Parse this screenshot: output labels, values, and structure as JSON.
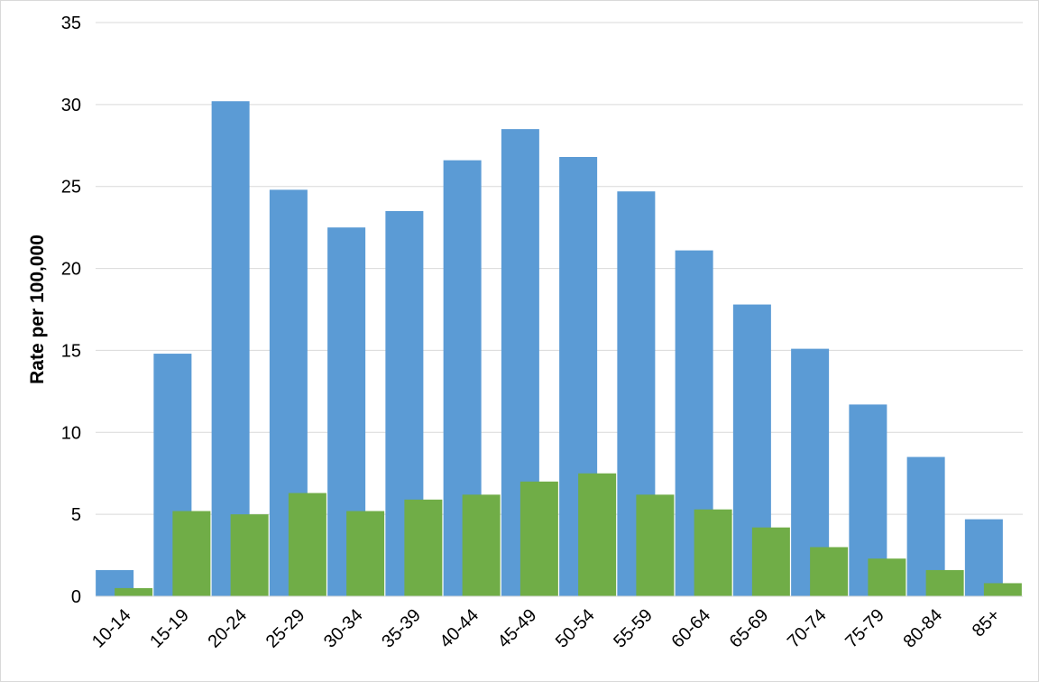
{
  "chart_data": {
    "type": "bar",
    "categories": [
      "10-14",
      "15-19",
      "20-24",
      "25-29",
      "30-34",
      "35-39",
      "40-44",
      "45-49",
      "50-54",
      "55-59",
      "60-64",
      "65-69",
      "70-74",
      "75-79",
      "80-84",
      "85+"
    ],
    "series": [
      {
        "values": [
          1.6,
          14.8,
          30.2,
          24.8,
          22.5,
          23.5,
          26.6,
          28.5,
          26.8,
          24.7,
          21.1,
          17.8,
          15.1,
          11.7,
          8.5,
          4.7
        ],
        "color": "#5b9bd5"
      },
      {
        "values": [
          0.5,
          5.2,
          5.0,
          6.3,
          5.2,
          5.9,
          6.2,
          7.0,
          7.5,
          6.2,
          5.3,
          4.2,
          3.0,
          2.3,
          1.6,
          0.8
        ],
        "color": "#70ad47"
      }
    ],
    "title": "",
    "xlabel": "",
    "ylabel": "Rate per 100,000",
    "ylim": [
      0,
      35
    ],
    "yticks": [
      0,
      5,
      10,
      15,
      20,
      25,
      30,
      35
    ],
    "grid": true,
    "legend": "none"
  }
}
